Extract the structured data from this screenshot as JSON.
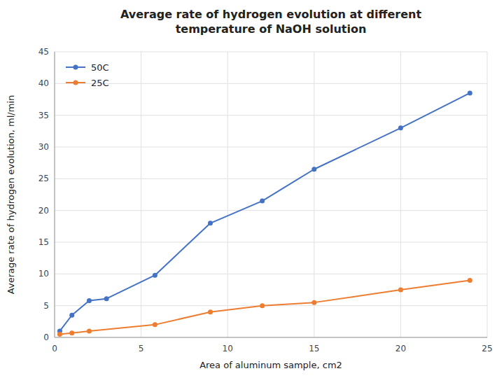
{
  "chart_data": {
    "type": "line",
    "title": "Average rate of hydrogen evolution at different\ntemperature of NaOH solution",
    "x_label": "Area of aluminum sample, cm2",
    "y_label": "Average rate of hydrogen evolution, ml/min",
    "series": [
      {
        "name": "50C",
        "color": "#4472C4",
        "x": [
          0.3,
          1.0,
          2.0,
          3.0,
          5.8,
          9.0,
          12.0,
          15.0,
          20.0,
          24.0
        ],
        "values": [
          1.0,
          3.5,
          5.8,
          6.1,
          9.8,
          18.0,
          21.5,
          26.5,
          33.0,
          38.5
        ]
      },
      {
        "name": "25C",
        "color": "#ED7D31",
        "x": [
          0.3,
          1.0,
          2.0,
          5.8,
          9.0,
          12.0,
          15.0,
          20.0,
          24.0
        ],
        "values": [
          0.5,
          0.7,
          1.0,
          2.0,
          4.0,
          5.0,
          5.5,
          7.5,
          9.0
        ]
      }
    ],
    "xlim": [
      0,
      25
    ],
    "ylim": [
      0,
      45
    ],
    "xticks": [
      0,
      5,
      10,
      15,
      20,
      25
    ],
    "yticks": [
      0,
      5,
      10,
      15,
      20,
      25,
      30,
      35,
      40,
      45
    ],
    "grid": true,
    "legend": "upper left",
    "marker": "circle"
  }
}
